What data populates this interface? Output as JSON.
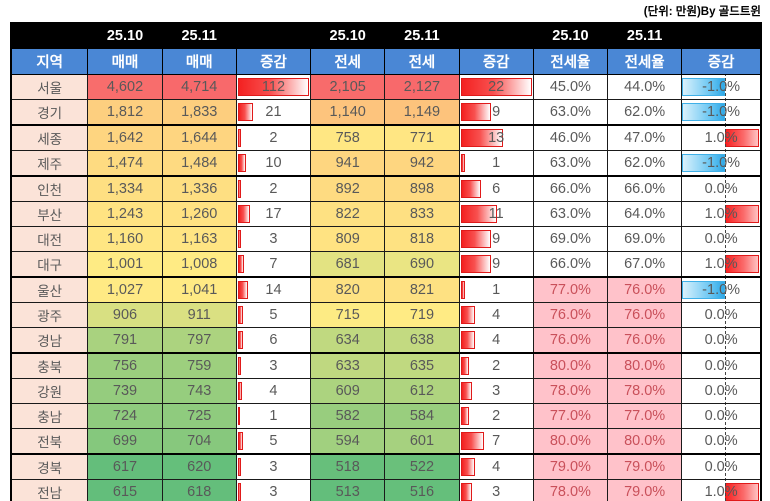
{
  "note": "(단위: 만원)By 골드트윈",
  "header": {
    "month_prev": "25.10",
    "month_curr": "25.11",
    "region": "지역",
    "sale": "매매",
    "jeonse": "전세",
    "ratio": "전세율",
    "diff": "증감"
  },
  "colors": {
    "header_blue": "#4A87D5",
    "header_black": "#000000",
    "region_bg": "#FBE3D8",
    "scale_min_green": "#63BE7B",
    "scale_mid_yellow": "#FFEB84",
    "scale_max_red": "#F8696B",
    "ratio_high_bg": "#FFC2CA",
    "ratio_high_text": "#C9505A",
    "bar_red": "#F32121",
    "bar_blue": "#2FA9E7",
    "text_gray": "#595959"
  },
  "rules": {
    "ratio_highlight_threshold": 75,
    "ratio_axis_position_pct": 55
  },
  "chart_data": {
    "type": "table",
    "unit_note": "(단위: 만원)By 골드트윈",
    "columns": [
      "지역",
      "매매 25.10",
      "매매 25.11",
      "증감",
      "전세 25.10",
      "전세 25.11",
      "증감",
      "전세율 25.10",
      "전세율 25.11",
      "증감"
    ],
    "rows": [
      {
        "region": "서울",
        "sale_prev": 4602,
        "sale_curr": 4714,
        "sale_diff": 112,
        "jeonse_prev": 2105,
        "jeonse_curr": 2127,
        "jeonse_diff": 22,
        "ratio_prev": 45.0,
        "ratio_curr": 44.0,
        "ratio_diff": -1.0,
        "group_end": false
      },
      {
        "region": "경기",
        "sale_prev": 1812,
        "sale_curr": 1833,
        "sale_diff": 21,
        "jeonse_prev": 1140,
        "jeonse_curr": 1149,
        "jeonse_diff": 9,
        "ratio_prev": 63.0,
        "ratio_curr": 62.0,
        "ratio_diff": -1.0,
        "group_end": true
      },
      {
        "region": "세종",
        "sale_prev": 1642,
        "sale_curr": 1644,
        "sale_diff": 2,
        "jeonse_prev": 758,
        "jeonse_curr": 771,
        "jeonse_diff": 13,
        "ratio_prev": 46.0,
        "ratio_curr": 47.0,
        "ratio_diff": 1.0,
        "group_end": false
      },
      {
        "region": "제주",
        "sale_prev": 1474,
        "sale_curr": 1484,
        "sale_diff": 10,
        "jeonse_prev": 941,
        "jeonse_curr": 942,
        "jeonse_diff": 1,
        "ratio_prev": 63.0,
        "ratio_curr": 62.0,
        "ratio_diff": -1.0,
        "group_end": true
      },
      {
        "region": "인천",
        "sale_prev": 1334,
        "sale_curr": 1336,
        "sale_diff": 2,
        "jeonse_prev": 892,
        "jeonse_curr": 898,
        "jeonse_diff": 6,
        "ratio_prev": 66.0,
        "ratio_curr": 66.0,
        "ratio_diff": 0.0,
        "group_end": false
      },
      {
        "region": "부산",
        "sale_prev": 1243,
        "sale_curr": 1260,
        "sale_diff": 17,
        "jeonse_prev": 822,
        "jeonse_curr": 833,
        "jeonse_diff": 11,
        "ratio_prev": 63.0,
        "ratio_curr": 64.0,
        "ratio_diff": 1.0,
        "group_end": false
      },
      {
        "region": "대전",
        "sale_prev": 1160,
        "sale_curr": 1163,
        "sale_diff": 3,
        "jeonse_prev": 809,
        "jeonse_curr": 818,
        "jeonse_diff": 9,
        "ratio_prev": 69.0,
        "ratio_curr": 69.0,
        "ratio_diff": 0.0,
        "group_end": false
      },
      {
        "region": "대구",
        "sale_prev": 1001,
        "sale_curr": 1008,
        "sale_diff": 7,
        "jeonse_prev": 681,
        "jeonse_curr": 690,
        "jeonse_diff": 9,
        "ratio_prev": 66.0,
        "ratio_curr": 67.0,
        "ratio_diff": 1.0,
        "group_end": true
      },
      {
        "region": "울산",
        "sale_prev": 1027,
        "sale_curr": 1041,
        "sale_diff": 14,
        "jeonse_prev": 820,
        "jeonse_curr": 821,
        "jeonse_diff": 1,
        "ratio_prev": 77.0,
        "ratio_curr": 76.0,
        "ratio_diff": -1.0,
        "group_end": false
      },
      {
        "region": "광주",
        "sale_prev": 906,
        "sale_curr": 911,
        "sale_diff": 5,
        "jeonse_prev": 715,
        "jeonse_curr": 719,
        "jeonse_diff": 4,
        "ratio_prev": 76.0,
        "ratio_curr": 76.0,
        "ratio_diff": 0.0,
        "group_end": false
      },
      {
        "region": "경남",
        "sale_prev": 791,
        "sale_curr": 797,
        "sale_diff": 6,
        "jeonse_prev": 634,
        "jeonse_curr": 638,
        "jeonse_diff": 4,
        "ratio_prev": 76.0,
        "ratio_curr": 76.0,
        "ratio_diff": 0.0,
        "group_end": true
      },
      {
        "region": "충북",
        "sale_prev": 756,
        "sale_curr": 759,
        "sale_diff": 3,
        "jeonse_prev": 633,
        "jeonse_curr": 635,
        "jeonse_diff": 2,
        "ratio_prev": 80.0,
        "ratio_curr": 80.0,
        "ratio_diff": 0.0,
        "group_end": false
      },
      {
        "region": "강원",
        "sale_prev": 739,
        "sale_curr": 743,
        "sale_diff": 4,
        "jeonse_prev": 609,
        "jeonse_curr": 612,
        "jeonse_diff": 3,
        "ratio_prev": 78.0,
        "ratio_curr": 78.0,
        "ratio_diff": 0.0,
        "group_end": false
      },
      {
        "region": "충남",
        "sale_prev": 724,
        "sale_curr": 725,
        "sale_diff": 1,
        "jeonse_prev": 582,
        "jeonse_curr": 584,
        "jeonse_diff": 2,
        "ratio_prev": 77.0,
        "ratio_curr": 77.0,
        "ratio_diff": 0.0,
        "group_end": false
      },
      {
        "region": "전북",
        "sale_prev": 699,
        "sale_curr": 704,
        "sale_diff": 5,
        "jeonse_prev": 594,
        "jeonse_curr": 601,
        "jeonse_diff": 7,
        "ratio_prev": 80.0,
        "ratio_curr": 80.0,
        "ratio_diff": 0.0,
        "group_end": true
      },
      {
        "region": "경북",
        "sale_prev": 617,
        "sale_curr": 620,
        "sale_diff": 3,
        "jeonse_prev": 518,
        "jeonse_curr": 522,
        "jeonse_diff": 4,
        "ratio_prev": 79.0,
        "ratio_curr": 79.0,
        "ratio_diff": 0.0,
        "group_end": false
      },
      {
        "region": "전남",
        "sale_prev": 615,
        "sale_curr": 618,
        "sale_diff": 3,
        "jeonse_prev": 513,
        "jeonse_curr": 516,
        "jeonse_diff": 3,
        "ratio_prev": 78.0,
        "ratio_curr": 79.0,
        "ratio_diff": 1.0,
        "group_end": false
      }
    ]
  }
}
